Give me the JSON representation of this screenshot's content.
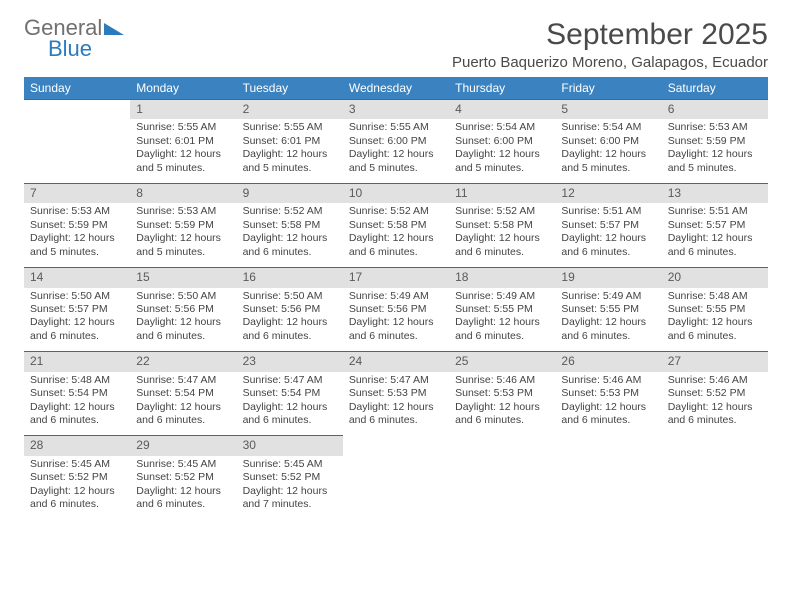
{
  "brand": {
    "line1": "General",
    "line2": "Blue"
  },
  "title": "September 2025",
  "location": "Puerto Baquerizo Moreno, Galapagos, Ecuador",
  "colors": {
    "header_bg": "#3b83c0",
    "header_text": "#ffffff",
    "daynum_bg": "#e1e1e1",
    "row_divider": "#2f6ea4",
    "text": "#444444",
    "title_color": "#4a4a4a",
    "logo_gray": "#707070",
    "logo_blue": "#2b7bbf",
    "background": "#ffffff"
  },
  "typography": {
    "body_pt": 10.5,
    "header_pt": 12,
    "title_pt": 30,
    "location_pt": 15,
    "family": "Arial"
  },
  "day_headers": [
    "Sunday",
    "Monday",
    "Tuesday",
    "Wednesday",
    "Thursday",
    "Friday",
    "Saturday"
  ],
  "weeks": [
    {
      "nums": [
        "",
        "1",
        "2",
        "3",
        "4",
        "5",
        "6"
      ],
      "cells": [
        null,
        {
          "sunrise": "Sunrise: 5:55 AM",
          "sunset": "Sunset: 6:01 PM",
          "daylight": "Daylight: 12 hours and 5 minutes."
        },
        {
          "sunrise": "Sunrise: 5:55 AM",
          "sunset": "Sunset: 6:01 PM",
          "daylight": "Daylight: 12 hours and 5 minutes."
        },
        {
          "sunrise": "Sunrise: 5:55 AM",
          "sunset": "Sunset: 6:00 PM",
          "daylight": "Daylight: 12 hours and 5 minutes."
        },
        {
          "sunrise": "Sunrise: 5:54 AM",
          "sunset": "Sunset: 6:00 PM",
          "daylight": "Daylight: 12 hours and 5 minutes."
        },
        {
          "sunrise": "Sunrise: 5:54 AM",
          "sunset": "Sunset: 6:00 PM",
          "daylight": "Daylight: 12 hours and 5 minutes."
        },
        {
          "sunrise": "Sunrise: 5:53 AM",
          "sunset": "Sunset: 5:59 PM",
          "daylight": "Daylight: 12 hours and 5 minutes."
        }
      ]
    },
    {
      "nums": [
        "7",
        "8",
        "9",
        "10",
        "11",
        "12",
        "13"
      ],
      "cells": [
        {
          "sunrise": "Sunrise: 5:53 AM",
          "sunset": "Sunset: 5:59 PM",
          "daylight": "Daylight: 12 hours and 5 minutes."
        },
        {
          "sunrise": "Sunrise: 5:53 AM",
          "sunset": "Sunset: 5:59 PM",
          "daylight": "Daylight: 12 hours and 5 minutes."
        },
        {
          "sunrise": "Sunrise: 5:52 AM",
          "sunset": "Sunset: 5:58 PM",
          "daylight": "Daylight: 12 hours and 6 minutes."
        },
        {
          "sunrise": "Sunrise: 5:52 AM",
          "sunset": "Sunset: 5:58 PM",
          "daylight": "Daylight: 12 hours and 6 minutes."
        },
        {
          "sunrise": "Sunrise: 5:52 AM",
          "sunset": "Sunset: 5:58 PM",
          "daylight": "Daylight: 12 hours and 6 minutes."
        },
        {
          "sunrise": "Sunrise: 5:51 AM",
          "sunset": "Sunset: 5:57 PM",
          "daylight": "Daylight: 12 hours and 6 minutes."
        },
        {
          "sunrise": "Sunrise: 5:51 AM",
          "sunset": "Sunset: 5:57 PM",
          "daylight": "Daylight: 12 hours and 6 minutes."
        }
      ]
    },
    {
      "nums": [
        "14",
        "15",
        "16",
        "17",
        "18",
        "19",
        "20"
      ],
      "cells": [
        {
          "sunrise": "Sunrise: 5:50 AM",
          "sunset": "Sunset: 5:57 PM",
          "daylight": "Daylight: 12 hours and 6 minutes."
        },
        {
          "sunrise": "Sunrise: 5:50 AM",
          "sunset": "Sunset: 5:56 PM",
          "daylight": "Daylight: 12 hours and 6 minutes."
        },
        {
          "sunrise": "Sunrise: 5:50 AM",
          "sunset": "Sunset: 5:56 PM",
          "daylight": "Daylight: 12 hours and 6 minutes."
        },
        {
          "sunrise": "Sunrise: 5:49 AM",
          "sunset": "Sunset: 5:56 PM",
          "daylight": "Daylight: 12 hours and 6 minutes."
        },
        {
          "sunrise": "Sunrise: 5:49 AM",
          "sunset": "Sunset: 5:55 PM",
          "daylight": "Daylight: 12 hours and 6 minutes."
        },
        {
          "sunrise": "Sunrise: 5:49 AM",
          "sunset": "Sunset: 5:55 PM",
          "daylight": "Daylight: 12 hours and 6 minutes."
        },
        {
          "sunrise": "Sunrise: 5:48 AM",
          "sunset": "Sunset: 5:55 PM",
          "daylight": "Daylight: 12 hours and 6 minutes."
        }
      ]
    },
    {
      "nums": [
        "21",
        "22",
        "23",
        "24",
        "25",
        "26",
        "27"
      ],
      "cells": [
        {
          "sunrise": "Sunrise: 5:48 AM",
          "sunset": "Sunset: 5:54 PM",
          "daylight": "Daylight: 12 hours and 6 minutes."
        },
        {
          "sunrise": "Sunrise: 5:47 AM",
          "sunset": "Sunset: 5:54 PM",
          "daylight": "Daylight: 12 hours and 6 minutes."
        },
        {
          "sunrise": "Sunrise: 5:47 AM",
          "sunset": "Sunset: 5:54 PM",
          "daylight": "Daylight: 12 hours and 6 minutes."
        },
        {
          "sunrise": "Sunrise: 5:47 AM",
          "sunset": "Sunset: 5:53 PM",
          "daylight": "Daylight: 12 hours and 6 minutes."
        },
        {
          "sunrise": "Sunrise: 5:46 AM",
          "sunset": "Sunset: 5:53 PM",
          "daylight": "Daylight: 12 hours and 6 minutes."
        },
        {
          "sunrise": "Sunrise: 5:46 AM",
          "sunset": "Sunset: 5:53 PM",
          "daylight": "Daylight: 12 hours and 6 minutes."
        },
        {
          "sunrise": "Sunrise: 5:46 AM",
          "sunset": "Sunset: 5:52 PM",
          "daylight": "Daylight: 12 hours and 6 minutes."
        }
      ]
    },
    {
      "nums": [
        "28",
        "29",
        "30",
        "",
        "",
        "",
        ""
      ],
      "cells": [
        {
          "sunrise": "Sunrise: 5:45 AM",
          "sunset": "Sunset: 5:52 PM",
          "daylight": "Daylight: 12 hours and 6 minutes."
        },
        {
          "sunrise": "Sunrise: 5:45 AM",
          "sunset": "Sunset: 5:52 PM",
          "daylight": "Daylight: 12 hours and 6 minutes."
        },
        {
          "sunrise": "Sunrise: 5:45 AM",
          "sunset": "Sunset: 5:52 PM",
          "daylight": "Daylight: 12 hours and 7 minutes."
        },
        null,
        null,
        null,
        null
      ]
    }
  ]
}
